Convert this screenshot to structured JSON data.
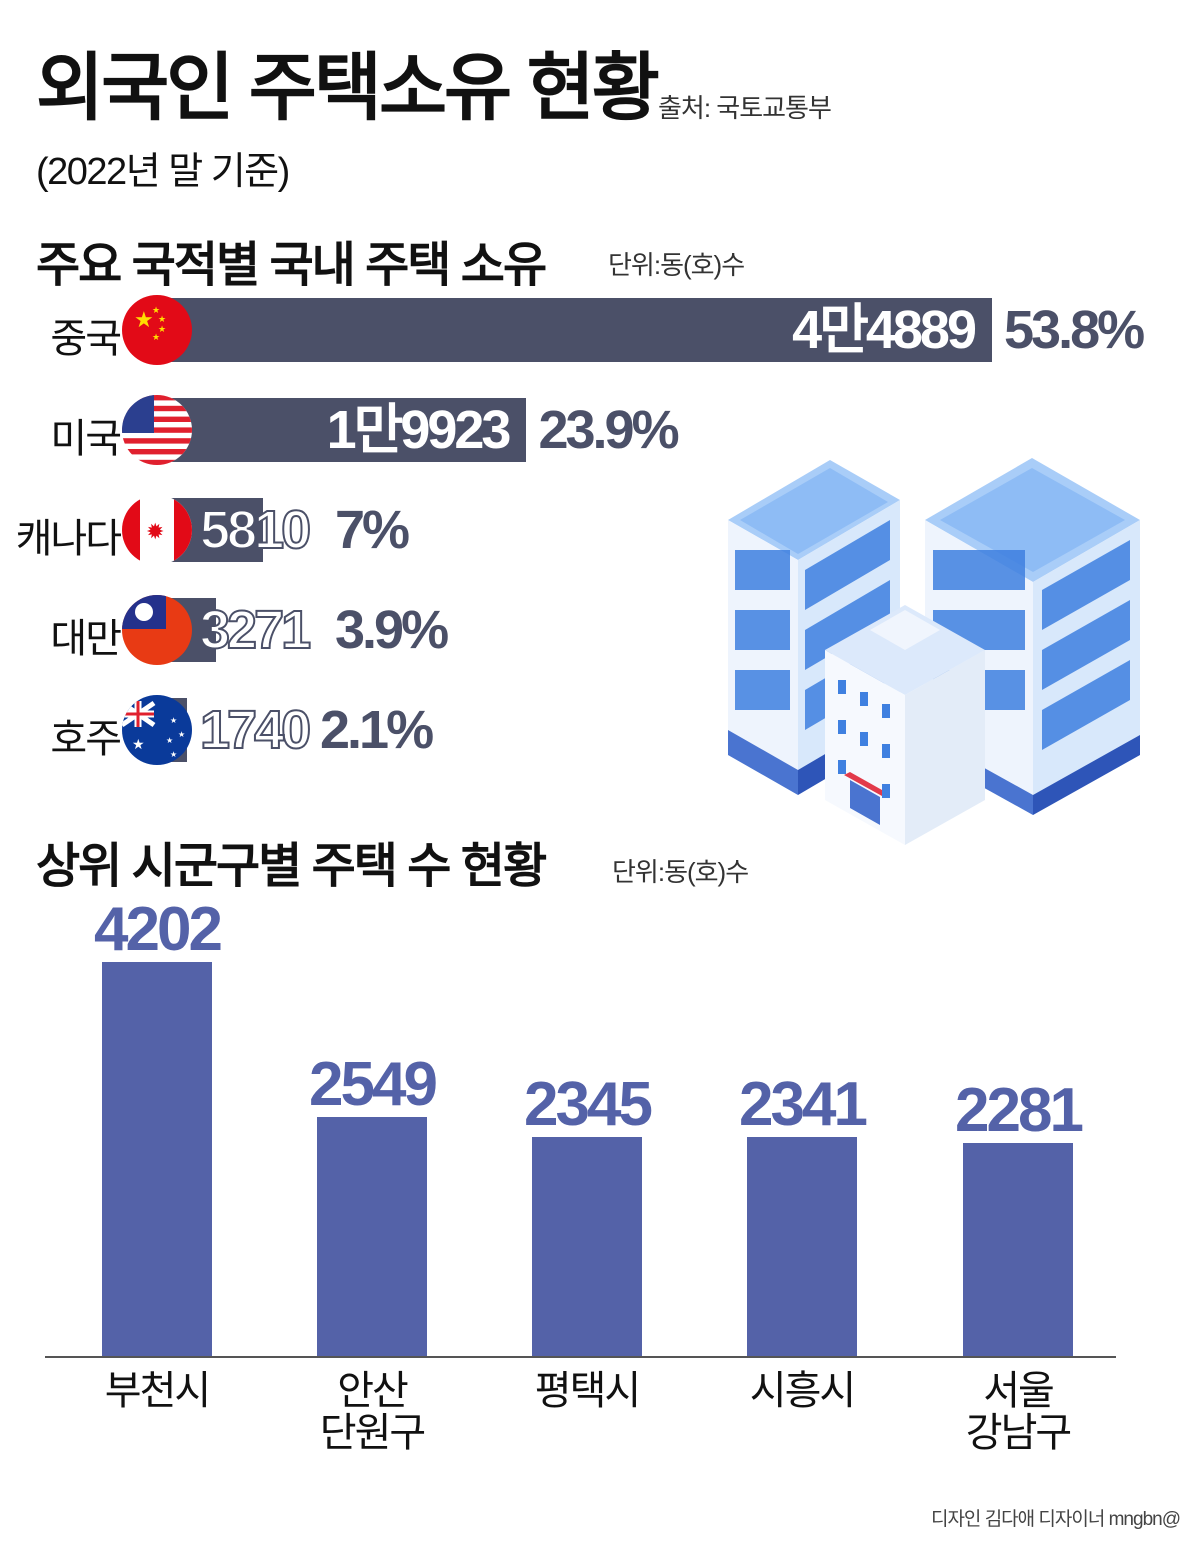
{
  "header": {
    "title": "외국인 주택소유 현황",
    "source": "출처: 국토교통부",
    "subtitle": "(2022년 말 기준)"
  },
  "section1": {
    "title": "주요 국적별 국내 주택 소유",
    "unit": "단위:동(호)수"
  },
  "section2": {
    "title": "상위 시군구별 주택 수 현황",
    "unit": "단위:동(호)수"
  },
  "credit": "디자인 김다애 디자이너 mngbn@",
  "colors": {
    "bar_dark": "#4b5068",
    "bar_blue": "#5462a8"
  },
  "chart_data": [
    {
      "type": "bar",
      "orientation": "horizontal",
      "title": "주요 국적별 국내 주택 소유",
      "unit": "단위:동(호)수",
      "categories": [
        "중국",
        "미국",
        "캐나다",
        "대만",
        "호주"
      ],
      "flags": [
        "china-flag-icon",
        "usa-flag-icon",
        "canada-flag-icon",
        "taiwan-flag-icon",
        "australia-flag-icon"
      ],
      "values": [
        44889,
        19923,
        5810,
        3271,
        1740
      ],
      "value_labels": [
        "4만4889",
        "1만9923",
        "5810",
        "3271",
        "1740"
      ],
      "percent_labels": [
        "53.8%",
        "23.9%",
        "7%",
        "3.9%",
        "2.1%"
      ]
    },
    {
      "type": "bar",
      "orientation": "vertical",
      "title": "상위 시군구별 주택 수 현황",
      "unit": "단위:동(호)수",
      "categories": [
        "부천시",
        "안산\n단원구",
        "평택시",
        "시흥시",
        "서울\n강남구"
      ],
      "values": [
        4202,
        2549,
        2345,
        2341,
        2281
      ],
      "value_labels": [
        "4202",
        "2549",
        "2345",
        "2341",
        "2281"
      ]
    }
  ]
}
